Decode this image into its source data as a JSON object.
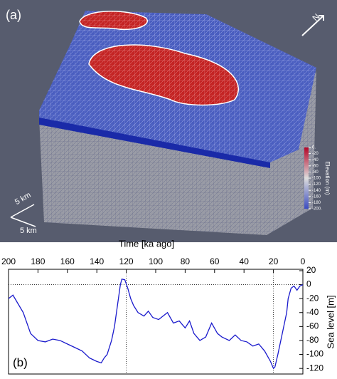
{
  "panel_a": {
    "label": "(a)",
    "north": "N",
    "scale_x": "5 km",
    "scale_y": "5 km",
    "colorbar": {
      "title": "Elevation (m)",
      "lim": [
        -200,
        0
      ],
      "ticks": [
        {
          "value": 0,
          "label": "0."
        },
        -20,
        -40,
        -60,
        -80,
        -100,
        -120,
        -140,
        -160,
        -180,
        {
          "value": -200,
          "label": "-200."
        }
      ]
    }
  },
  "chart_data": {
    "type": "line",
    "panel_label": "(b)",
    "x_label": "Time [ka ago]",
    "y_label": "Sea level [m]",
    "xlim": [
      200,
      0
    ],
    "ylim": [
      -128,
      22
    ],
    "xticks": [
      200,
      180,
      160,
      140,
      120,
      100,
      80,
      60,
      40,
      20,
      0
    ],
    "yticks": [
      20,
      0,
      -20,
      -40,
      -60,
      -80,
      -100,
      -120
    ],
    "vlines": [
      120,
      20
    ],
    "hlines": [
      0
    ],
    "x": [
      200,
      197,
      190,
      185,
      180,
      175,
      170,
      165,
      160,
      155,
      150,
      145,
      140,
      137,
      135,
      133,
      130,
      128,
      126,
      124,
      123,
      121,
      119,
      117,
      115,
      112,
      108,
      105,
      102,
      98,
      95,
      92,
      88,
      84,
      80,
      77,
      74,
      70,
      66,
      62,
      58,
      55,
      50,
      46,
      42,
      38,
      34,
      30,
      26,
      22,
      20,
      19,
      17,
      15,
      13,
      11,
      10,
      8,
      6,
      4,
      2,
      0
    ],
    "series": [
      {
        "color": "#1a1acc",
        "values": [
          -20,
          -15,
          -40,
          -70,
          -80,
          -82,
          -78,
          -80,
          -85,
          -90,
          -95,
          -105,
          -110,
          -112,
          -105,
          -100,
          -80,
          -60,
          -30,
          0,
          8,
          7,
          -5,
          -20,
          -30,
          -40,
          -45,
          -38,
          -47,
          -50,
          -45,
          -40,
          -55,
          -52,
          -62,
          -52,
          -70,
          -80,
          -75,
          -55,
          -70,
          -75,
          -80,
          -72,
          -80,
          -82,
          -88,
          -85,
          -95,
          -110,
          -120,
          -118,
          -100,
          -80,
          -60,
          -40,
          -20,
          -5,
          -2,
          -8,
          -2,
          0
        ]
      }
    ]
  }
}
